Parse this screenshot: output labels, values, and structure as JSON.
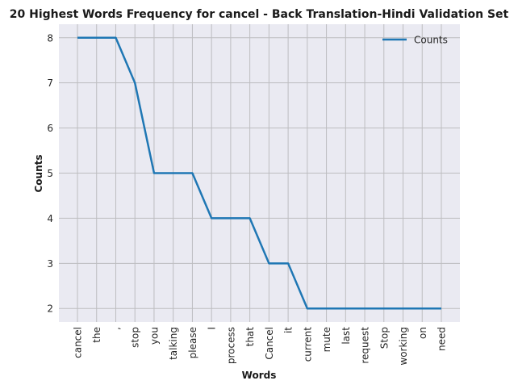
{
  "chart_data": {
    "type": "line",
    "title": "20 Highest Words Frequency for cancel - Back Translation-Hindi Validation Set",
    "xlabel": "Words",
    "ylabel": "Counts",
    "categories": [
      "cancel",
      "the",
      ",",
      "stop",
      "you",
      "talking",
      "please",
      "I",
      "process",
      "that",
      "Cancel",
      "it",
      "current",
      "mute",
      "last",
      "request",
      "Stop",
      "working",
      "on",
      "need"
    ],
    "series": [
      {
        "name": "Counts",
        "values": [
          8,
          8,
          8,
          7,
          5,
          5,
          5,
          4,
          4,
          4,
          3,
          3,
          2,
          2,
          2,
          2,
          2,
          2,
          2,
          2
        ],
        "color": "#1f77b4"
      }
    ],
    "yticks": [
      2,
      3,
      4,
      5,
      6,
      7,
      8
    ],
    "ylim": [
      1.7,
      8.3
    ],
    "grid": true,
    "legend_position": "top-right",
    "background_color": "#eaeaf2",
    "grid_color": "#bdbdc0"
  }
}
